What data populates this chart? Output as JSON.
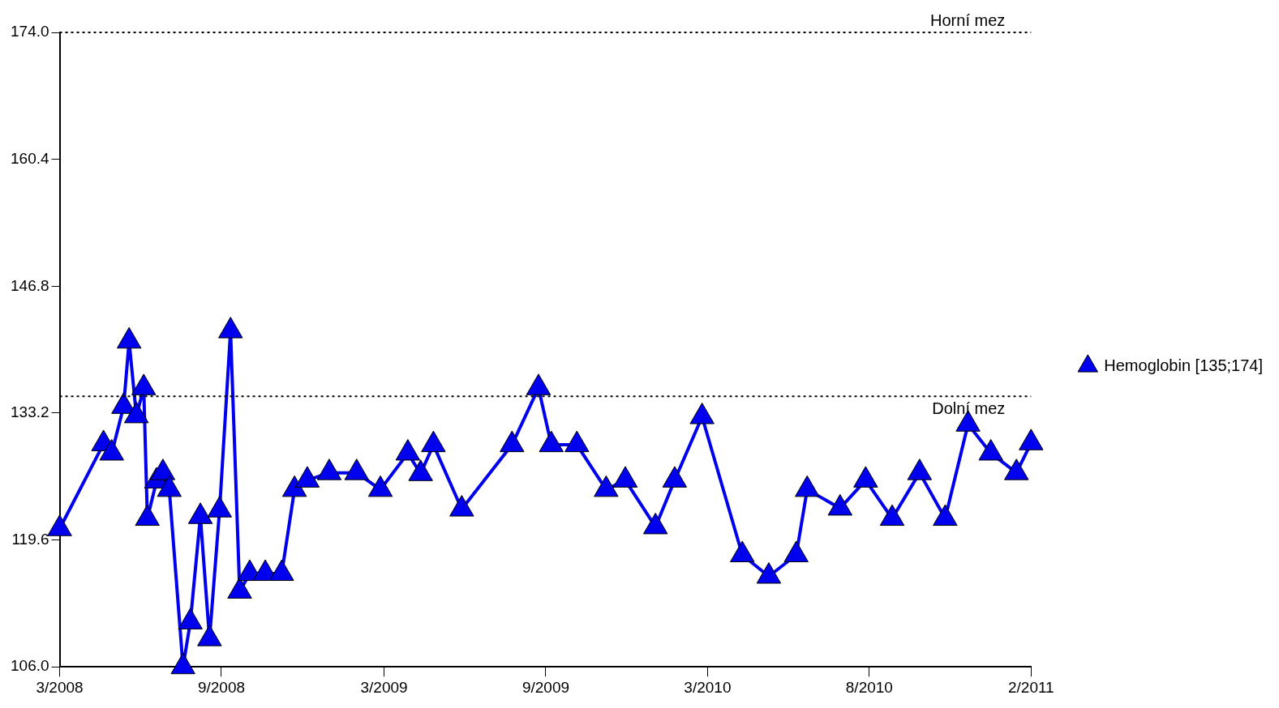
{
  "chart_data": {
    "type": "line",
    "x": [
      "2008-03-25",
      "2008-05-12",
      "2008-05-21",
      "2008-06-03",
      "2008-06-09",
      "2008-06-17",
      "2008-06-25",
      "2008-06-29",
      "2008-07-09",
      "2008-07-16",
      "2008-07-23",
      "2008-08-07",
      "2008-08-15",
      "2008-08-26",
      "2008-09-05",
      "2008-09-16",
      "2008-09-28",
      "2008-10-08",
      "2008-10-19",
      "2008-11-05",
      "2008-11-23",
      "2008-12-07",
      "2008-12-21",
      "2009-01-14",
      "2009-02-13",
      "2009-03-11",
      "2009-04-10",
      "2009-04-24",
      "2009-05-08",
      "2009-06-08",
      "2009-08-02",
      "2009-08-31",
      "2009-09-14",
      "2009-10-12",
      "2009-11-13",
      "2009-12-04",
      "2010-01-06",
      "2010-01-27",
      "2010-02-26",
      "2010-04-11",
      "2010-05-10",
      "2010-06-09",
      "2010-06-21",
      "2010-07-27",
      "2010-08-24",
      "2010-09-22",
      "2010-10-22",
      "2010-11-19",
      "2010-12-14",
      "2011-01-08",
      "2011-02-05",
      "2011-02-21"
    ],
    "series": [
      {
        "name": "Hemoglobin [135;174]",
        "color": "#0000ee",
        "values": [
          120.8,
          129.9,
          128.9,
          133.9,
          140.9,
          132.9,
          135.9,
          121.9,
          125.9,
          126.8,
          125.0,
          106.0,
          110.8,
          122.1,
          109.0,
          122.8,
          142.0,
          114.1,
          116.0,
          116.0,
          116.0,
          125.0,
          126.0,
          126.8,
          126.8,
          125.0,
          128.9,
          126.7,
          129.8,
          122.9,
          129.8,
          135.9,
          129.8,
          129.8,
          125.0,
          126.0,
          121.0,
          126.0,
          132.8,
          118.0,
          115.7,
          118.0,
          125.0,
          123.0,
          126.0,
          121.9,
          126.8,
          121.9,
          132.0,
          128.9,
          126.8,
          130.0
        ]
      }
    ],
    "xlim": [
      "2008-03-25",
      "2011-02-21"
    ],
    "xticks": [
      {
        "value": "2008-03-25",
        "label": "3/2008"
      },
      {
        "value": "2008-09-18",
        "label": "9/2008"
      },
      {
        "value": "2009-03-15",
        "label": "3/2009"
      },
      {
        "value": "2009-09-08",
        "label": "9/2009"
      },
      {
        "value": "2010-03-04",
        "label": "3/2010"
      },
      {
        "value": "2010-08-28",
        "label": "8/2010"
      },
      {
        "value": "2011-02-21",
        "label": "2/2011"
      }
    ],
    "ylim": [
      106,
      174
    ],
    "yticks": [
      {
        "value": 106,
        "label": "106.0"
      },
      119.6,
      133.2,
      146.8,
      160.4,
      {
        "value": 174,
        "label": "174.0"
      }
    ],
    "ref_lines": [
      {
        "axis": "y",
        "value": 174,
        "label": "Horní mez",
        "line_style": "dotted"
      },
      {
        "axis": "y",
        "value": 135,
        "label": "Dolní mez",
        "line_style": "dotted"
      }
    ],
    "grid": false,
    "legend": "right",
    "marker": "triangle",
    "line_style": "solid"
  }
}
